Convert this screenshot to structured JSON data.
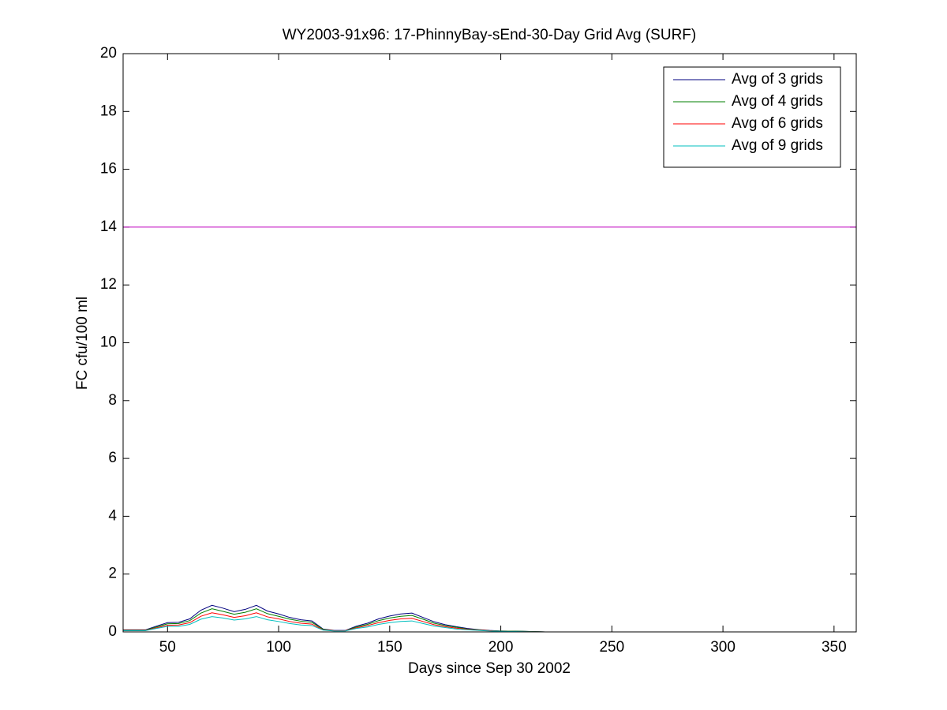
{
  "chart_data": {
    "type": "line",
    "title": "WY2003-91x96: 17-PhinnyBay-sEnd-30-Day Grid Avg (SURF)",
    "x_label": "Days since Sep 30 2002",
    "y_label": "FC cfu/100 ml",
    "x": [
      30,
      35,
      40,
      45,
      50,
      55,
      60,
      65,
      70,
      75,
      80,
      85,
      90,
      95,
      100,
      105,
      110,
      115,
      120,
      125,
      130,
      135,
      140,
      145,
      150,
      155,
      160,
      165,
      170,
      175,
      180,
      185,
      190,
      195,
      200,
      210,
      220,
      250,
      300,
      335
    ],
    "series": [
      {
        "name": "Avg of 3 grids",
        "color": "#00007f",
        "values": [
          0.07,
          0.07,
          0.07,
          0.2,
          0.32,
          0.33,
          0.45,
          0.75,
          0.92,
          0.82,
          0.7,
          0.78,
          0.92,
          0.72,
          0.62,
          0.5,
          0.42,
          0.38,
          0.1,
          0.05,
          0.05,
          0.2,
          0.3,
          0.45,
          0.55,
          0.62,
          0.65,
          0.5,
          0.35,
          0.25,
          0.18,
          0.12,
          0.08,
          0.05,
          0.03,
          0.02,
          0,
          0,
          0,
          0
        ]
      },
      {
        "name": "Avg of 4 grids",
        "color": "#007f00",
        "values": [
          0.06,
          0.06,
          0.06,
          0.17,
          0.28,
          0.29,
          0.39,
          0.65,
          0.8,
          0.71,
          0.61,
          0.68,
          0.8,
          0.63,
          0.54,
          0.44,
          0.37,
          0.33,
          0.09,
          0.04,
          0.04,
          0.17,
          0.26,
          0.39,
          0.48,
          0.54,
          0.57,
          0.44,
          0.3,
          0.22,
          0.16,
          0.1,
          0.07,
          0.04,
          0.03,
          0.02,
          0,
          0,
          0,
          0
        ]
      },
      {
        "name": "Avg of 6 grids",
        "color": "#ff0000",
        "values": [
          0.05,
          0.05,
          0.05,
          0.14,
          0.23,
          0.24,
          0.32,
          0.54,
          0.66,
          0.59,
          0.5,
          0.56,
          0.66,
          0.52,
          0.45,
          0.36,
          0.3,
          0.27,
          0.07,
          0.04,
          0.04,
          0.14,
          0.22,
          0.32,
          0.4,
          0.45,
          0.47,
          0.36,
          0.25,
          0.18,
          0.13,
          0.09,
          0.06,
          0.04,
          0.02,
          0.01,
          0,
          0,
          0,
          0
        ]
      },
      {
        "name": "Avg of 9 grids",
        "color": "#00bfbf",
        "values": [
          0.04,
          0.04,
          0.04,
          0.12,
          0.19,
          0.19,
          0.26,
          0.44,
          0.53,
          0.48,
          0.41,
          0.45,
          0.53,
          0.42,
          0.36,
          0.29,
          0.24,
          0.22,
          0.06,
          0.03,
          0.03,
          0.12,
          0.17,
          0.26,
          0.32,
          0.36,
          0.38,
          0.29,
          0.2,
          0.15,
          0.1,
          0.07,
          0.05,
          0.03,
          0.02,
          0.01,
          0,
          0,
          0,
          0
        ]
      }
    ],
    "reference_line": {
      "value": 14,
      "color": "#bf00bf"
    },
    "xlim": [
      30,
      360
    ],
    "xticks": [
      50,
      100,
      150,
      200,
      250,
      300,
      350
    ],
    "ylim": [
      0,
      20
    ],
    "yticks": [
      0,
      2,
      4,
      6,
      8,
      10,
      12,
      14,
      16,
      18,
      20
    ],
    "legend": "top-right"
  }
}
